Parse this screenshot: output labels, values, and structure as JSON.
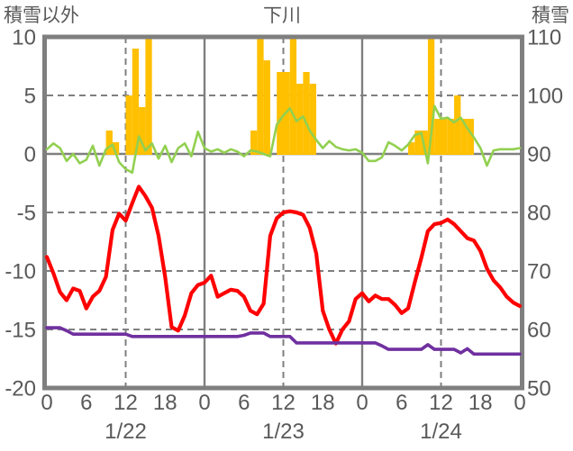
{
  "colors": {
    "background": "#FFFFFF",
    "frame": "#7F7F7F",
    "grid": "#7F7F7F",
    "text": "#595959",
    "bar": "#FFC000",
    "green_line": "#92D050",
    "red_line": "#FF0000",
    "purple_line": "#7030A0"
  },
  "chart_data": {
    "type": "composite",
    "title": "下川",
    "left_axis": {
      "label": "積雪以外",
      "range": [
        -20,
        10
      ],
      "ticks": [
        10,
        5,
        0,
        -5,
        -10,
        -15,
        -20
      ]
    },
    "right_axis": {
      "label": "積雪",
      "range": [
        50,
        110
      ],
      "ticks": [
        110,
        100,
        90,
        80,
        70,
        60,
        50
      ]
    },
    "x_axis": {
      "hours_total": 72,
      "tick_step": 6,
      "tick_labels": [
        "0",
        "6",
        "12",
        "18",
        "0",
        "6",
        "12",
        "18",
        "0",
        "6",
        "12",
        "18",
        "0"
      ],
      "day_labels": [
        "1/22",
        "1/23",
        "1/24"
      ],
      "day_label_center_hours": [
        12,
        36,
        60
      ],
      "solid_gridlines_hours": [
        24,
        48
      ],
      "dashed_gridlines_hours": [
        12,
        36,
        60
      ]
    },
    "grid": {
      "dashed_y_left": [
        5,
        -5,
        -10,
        -15
      ],
      "solid_y_left": [
        0
      ]
    },
    "series": [
      {
        "name": "hourly-snowfall",
        "type": "bar",
        "axis": "left",
        "color": "#FFC000",
        "values": [
          0,
          0,
          0,
          0,
          0,
          0,
          0,
          0,
          0,
          2,
          1,
          0,
          5,
          9,
          4,
          10,
          0,
          0,
          0,
          0,
          0,
          0,
          0,
          0,
          0,
          0,
          0,
          0,
          0,
          0,
          0,
          2,
          10,
          8,
          0,
          7,
          7,
          10,
          6,
          7,
          6,
          0,
          0,
          0,
          0,
          0,
          0,
          0,
          0,
          0,
          0,
          0,
          0,
          0,
          0,
          1,
          2,
          2,
          10,
          3,
          3,
          3,
          5,
          3,
          3,
          0,
          0,
          0,
          0,
          0,
          0,
          0
        ]
      },
      {
        "name": "snowfall-intensity",
        "type": "line",
        "axis": "left",
        "color": "#92D050",
        "width": 2.6,
        "values": [
          0.4,
          0.9,
          0.5,
          -0.6,
          0.0,
          -0.8,
          -0.5,
          0.7,
          -1.0,
          0.4,
          0.8,
          -0.7,
          -1.3,
          -1.6,
          1.5,
          0.3,
          0.9,
          -0.4,
          0.7,
          -0.7,
          0.5,
          0.9,
          -0.2,
          1.9,
          0.5,
          0.2,
          0.4,
          0.1,
          0.4,
          0.2,
          -0.2,
          0.3,
          0.2,
          0.0,
          -0.2,
          2.5,
          3.3,
          3.9,
          2.8,
          3.2,
          2.0,
          1.2,
          0.5,
          1.1,
          0.6,
          0.4,
          0.3,
          0.4,
          0.1,
          -0.6,
          -0.6,
          -0.3,
          1.0,
          0.7,
          0.3,
          0.8,
          1.6,
          1.8,
          -0.8,
          4.1,
          3.0,
          3.1,
          2.7,
          3.1,
          2.2,
          1.4,
          0.5,
          -1.0,
          0.3,
          0.4,
          0.4,
          0.4,
          0.5
        ]
      },
      {
        "name": "temperature",
        "type": "line",
        "axis": "left",
        "color": "#FF0000",
        "width": 4.2,
        "values": [
          -8.8,
          -10.2,
          -11.8,
          -12.5,
          -11.5,
          -11.7,
          -13.2,
          -12.2,
          -11.7,
          -10.5,
          -6.5,
          -5.1,
          -5.7,
          -4.2,
          -2.8,
          -3.6,
          -4.6,
          -7.0,
          -10.5,
          -14.8,
          -15.1,
          -13.8,
          -11.9,
          -11.2,
          -11.0,
          -10.4,
          -12.2,
          -11.9,
          -11.6,
          -11.7,
          -12.2,
          -13.4,
          -13.7,
          -12.8,
          -7.0,
          -5.5,
          -5.0,
          -4.9,
          -5.0,
          -5.2,
          -6.3,
          -8.5,
          -13.4,
          -15.0,
          -16.2,
          -15.0,
          -14.3,
          -12.4,
          -11.9,
          -12.6,
          -12.1,
          -12.4,
          -12.4,
          -12.9,
          -13.6,
          -13.2,
          -11.0,
          -8.9,
          -6.6,
          -6.0,
          -5.9,
          -5.6,
          -6.0,
          -6.6,
          -7.2,
          -7.4,
          -8.3,
          -9.8,
          -10.8,
          -11.4,
          -12.2,
          -12.7,
          -13.0
        ]
      },
      {
        "name": "snow-depth",
        "type": "line",
        "axis": "right",
        "color": "#7030A0",
        "width": 3.6,
        "values": [
          60.3,
          60.3,
          60.3,
          59.8,
          59.2,
          59.2,
          59.2,
          59.2,
          59.2,
          59.2,
          59.2,
          59.2,
          59.2,
          58.8,
          58.8,
          58.8,
          58.8,
          58.8,
          58.8,
          58.8,
          58.8,
          58.8,
          58.8,
          58.8,
          58.8,
          58.8,
          58.8,
          58.8,
          58.8,
          58.8,
          59.0,
          59.4,
          59.4,
          59.4,
          58.8,
          58.8,
          58.8,
          58.8,
          57.7,
          57.7,
          57.7,
          57.7,
          57.7,
          57.7,
          57.7,
          57.7,
          57.7,
          57.7,
          57.7,
          57.7,
          57.7,
          57.2,
          56.6,
          56.6,
          56.6,
          56.6,
          56.6,
          56.6,
          57.4,
          56.6,
          56.6,
          56.6,
          56.6,
          56.0,
          56.7,
          55.8,
          55.8,
          55.8,
          55.8,
          55.8,
          55.8,
          55.8,
          55.8
        ]
      }
    ]
  }
}
